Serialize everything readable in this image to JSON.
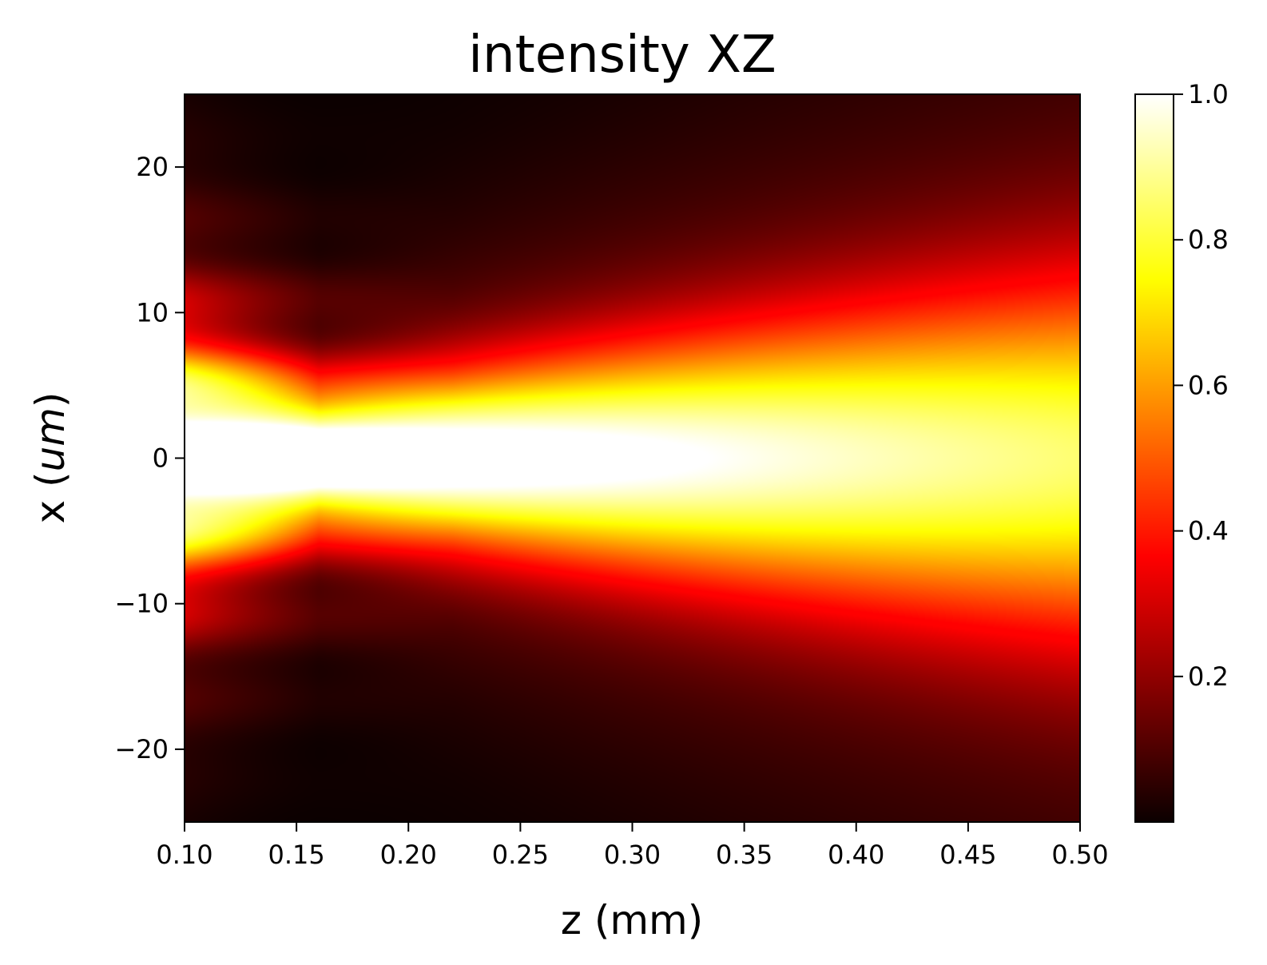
{
  "chart_data": {
    "type": "heatmap",
    "title": "intensity XZ",
    "xlabel": "z (mm)",
    "ylabel_prefix": "x (",
    "ylabel_unit": "um",
    "ylabel_suffix": ")",
    "xlim": [
      0.1,
      0.5
    ],
    "ylim": [
      -25,
      25
    ],
    "xticks": [
      0.1,
      0.15,
      0.2,
      0.25,
      0.3,
      0.35,
      0.4,
      0.45,
      0.5
    ],
    "xtick_labels": [
      "0.10",
      "0.15",
      "0.20",
      "0.25",
      "0.30",
      "0.35",
      "0.40",
      "0.45",
      "0.50"
    ],
    "yticks": [
      20,
      10,
      0,
      -10,
      -20
    ],
    "ytick_labels": [
      "20",
      "10",
      "0",
      "−10",
      "−20"
    ],
    "colorbar": {
      "range": [
        0,
        1.0
      ],
      "ticks": [
        1.0,
        0.8,
        0.6,
        0.4,
        0.2
      ],
      "tick_labels": [
        "1.0",
        "0.8",
        "0.6",
        "0.4",
        "0.2"
      ],
      "colormap": "hot"
    },
    "peak": {
      "z": 0.16,
      "x": 0,
      "value": 1.0
    },
    "grid": false
  }
}
